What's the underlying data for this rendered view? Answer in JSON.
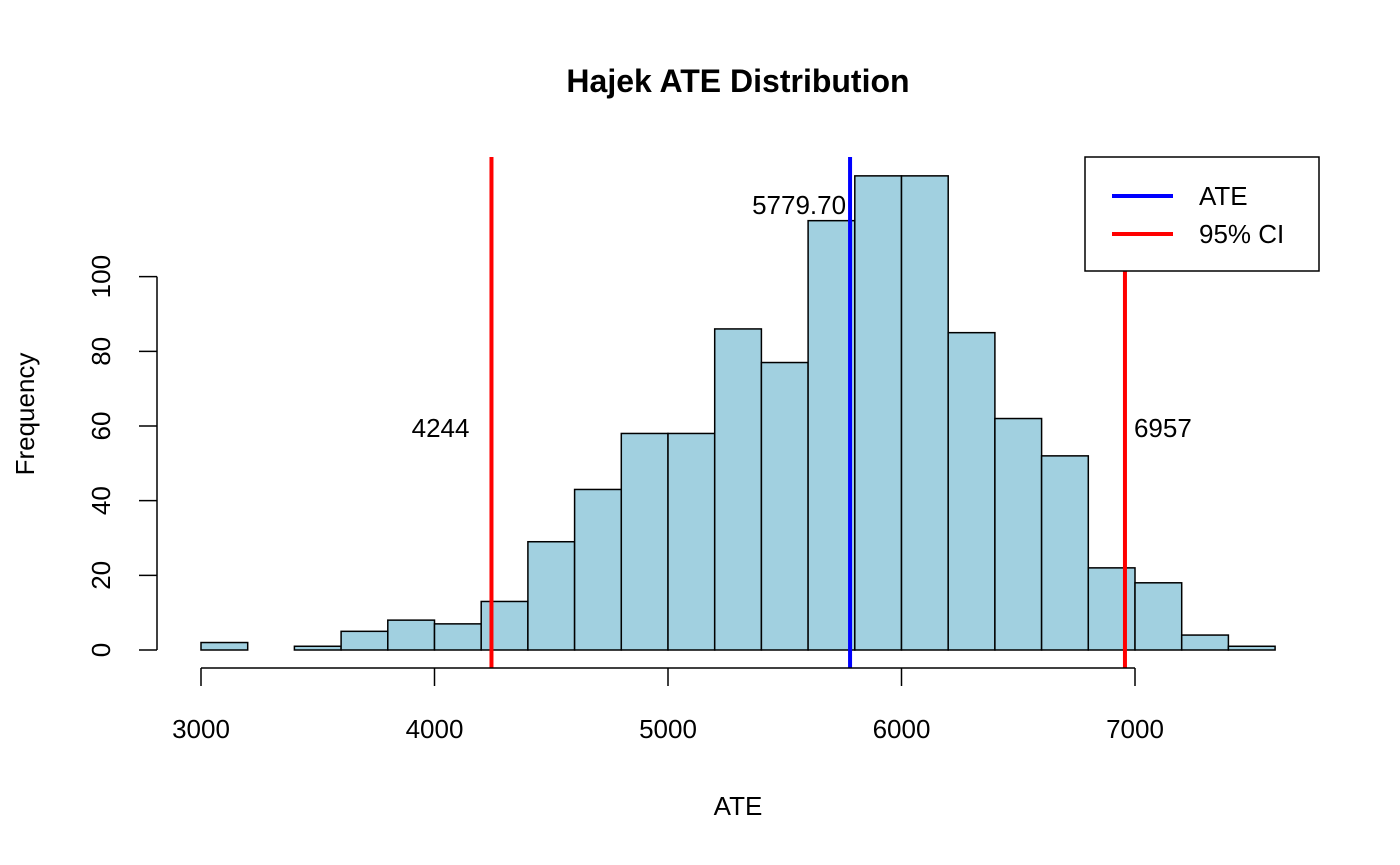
{
  "chart_data": {
    "type": "bar",
    "title": "Hajek ATE Distribution",
    "xlabel": "ATE",
    "ylabel": "Frequency",
    "xlim": [
      3000,
      7600
    ],
    "ylim": [
      0,
      120
    ],
    "xticks": [
      3000,
      4000,
      5000,
      6000,
      7000
    ],
    "yticks": [
      0,
      20,
      40,
      60,
      80,
      100
    ],
    "bin_width": 200,
    "bins": [
      {
        "start": 3000,
        "end": 3200,
        "count": 2
      },
      {
        "start": 3200,
        "end": 3400,
        "count": 0
      },
      {
        "start": 3400,
        "end": 3600,
        "count": 1
      },
      {
        "start": 3600,
        "end": 3800,
        "count": 5
      },
      {
        "start": 3800,
        "end": 4000,
        "count": 8
      },
      {
        "start": 4000,
        "end": 4200,
        "count": 7
      },
      {
        "start": 4200,
        "end": 4400,
        "count": 13
      },
      {
        "start": 4400,
        "end": 4600,
        "count": 29
      },
      {
        "start": 4600,
        "end": 4800,
        "count": 43
      },
      {
        "start": 4800,
        "end": 5000,
        "count": 58
      },
      {
        "start": 5000,
        "end": 5200,
        "count": 58
      },
      {
        "start": 5200,
        "end": 5400,
        "count": 86
      },
      {
        "start": 5400,
        "end": 5600,
        "count": 77
      },
      {
        "start": 5600,
        "end": 5800,
        "count": 115
      },
      {
        "start": 5800,
        "end": 6000,
        "count": 127
      },
      {
        "start": 6000,
        "end": 6200,
        "count": 127
      },
      {
        "start": 6200,
        "end": 6400,
        "count": 85
      },
      {
        "start": 6400,
        "end": 6600,
        "count": 62
      },
      {
        "start": 6600,
        "end": 6800,
        "count": 52
      },
      {
        "start": 6800,
        "end": 7000,
        "count": 22
      },
      {
        "start": 7000,
        "end": 7200,
        "count": 18
      },
      {
        "start": 7200,
        "end": 7400,
        "count": 4
      },
      {
        "start": 7400,
        "end": 7600,
        "count": 1
      }
    ],
    "bar_color": "#a1d0e0",
    "vlines": [
      {
        "name": "ATE",
        "x": 5779.7,
        "label": "5779.70",
        "color": "#0000ff"
      },
      {
        "name": "95% CI",
        "x": 4244,
        "label": "4244",
        "color": "#ff0000"
      },
      {
        "name": "95% CI",
        "x": 6957,
        "label": "6957",
        "color": "#ff0000"
      }
    ],
    "legend": {
      "placement": "top-right",
      "entries": [
        {
          "label": "ATE",
          "color": "#0000ff"
        },
        {
          "label": "95% CI",
          "color": "#ff0000"
        }
      ]
    },
    "grid": false
  }
}
